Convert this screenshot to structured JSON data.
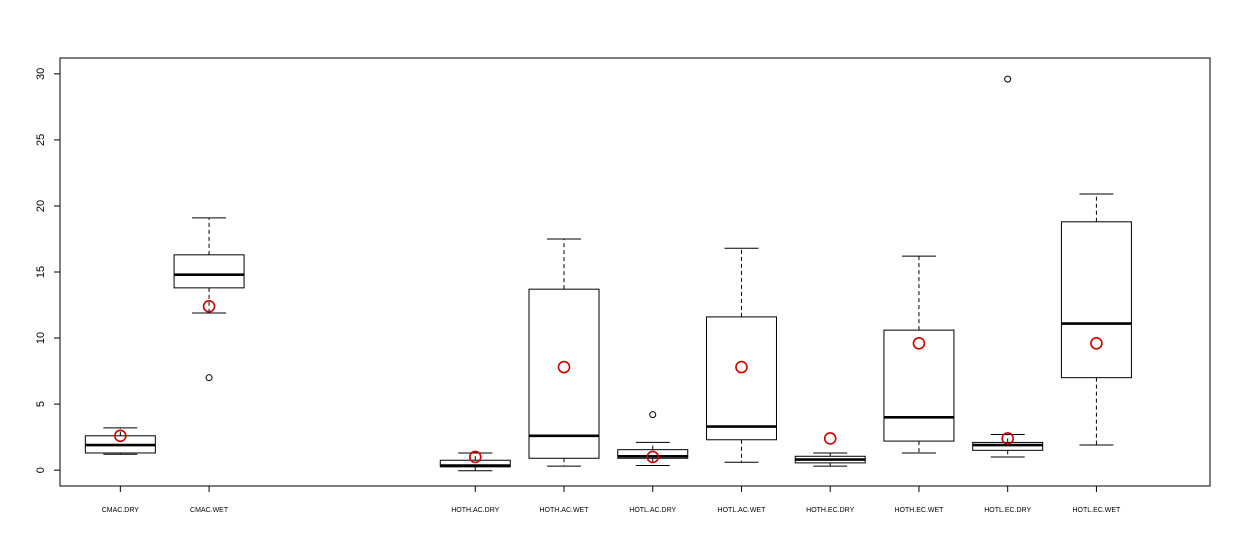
{
  "chart_data": {
    "type": "boxplot",
    "title": "",
    "xlabel": "",
    "ylabel": "",
    "ylim": [
      -1.2,
      31.2
    ],
    "yticks": [
      0,
      5,
      10,
      15,
      20,
      25,
      30
    ],
    "grid": false,
    "legend": "none",
    "colors": {
      "box": "#000000",
      "mean_marker": "#cc0000"
    },
    "categories": [
      {
        "label": "CMAC.DRY",
        "pos": 1,
        "whisker_low": 1.2,
        "q1": 1.3,
        "median": 1.9,
        "q3": 2.6,
        "whisker_high": 3.2,
        "outliers": [],
        "mean": 2.6
      },
      {
        "label": "CMAC.WET",
        "pos": 2,
        "whisker_low": 11.9,
        "q1": 13.8,
        "median": 14.8,
        "q3": 16.3,
        "whisker_high": 19.1,
        "outliers": [
          7.0
        ],
        "mean": 12.4
      },
      {
        "label": "HOTH.AC.DRY",
        "pos": 5,
        "whisker_low": -0.05,
        "q1": 0.25,
        "median": 0.35,
        "q3": 0.75,
        "whisker_high": 1.3,
        "outliers": [],
        "mean": 1.0
      },
      {
        "label": "HOTH.AC.WET",
        "pos": 6,
        "whisker_low": 0.3,
        "q1": 0.9,
        "median": 2.6,
        "q3": 13.7,
        "whisker_high": 17.5,
        "outliers": [],
        "mean": 7.8
      },
      {
        "label": "HOTL.AC.DRY",
        "pos": 7,
        "whisker_low": 0.35,
        "q1": 0.9,
        "median": 1.05,
        "q3": 1.55,
        "whisker_high": 2.1,
        "outliers": [
          4.2
        ],
        "mean": 1.0
      },
      {
        "label": "HOTL.AC.WET",
        "pos": 8,
        "whisker_low": 0.6,
        "q1": 2.3,
        "median": 3.3,
        "q3": 11.6,
        "whisker_high": 16.8,
        "outliers": [],
        "mean": 7.8
      },
      {
        "label": "HOTH.EC.DRY",
        "pos": 9,
        "whisker_low": 0.3,
        "q1": 0.55,
        "median": 0.8,
        "q3": 1.05,
        "whisker_high": 1.3,
        "outliers": [],
        "mean": 2.4
      },
      {
        "label": "HOTH.EC.WET",
        "pos": 10,
        "whisker_low": 1.3,
        "q1": 2.2,
        "median": 4.0,
        "q3": 10.6,
        "whisker_high": 16.2,
        "outliers": [],
        "mean": 9.6
      },
      {
        "label": "HOTL.EC.DRY",
        "pos": 11,
        "whisker_low": 1.0,
        "q1": 1.5,
        "median": 1.9,
        "q3": 2.1,
        "whisker_high": 2.7,
        "outliers": [
          29.6
        ],
        "mean": 2.4
      },
      {
        "label": "HOTL.EC.WET",
        "pos": 12,
        "whisker_low": 1.9,
        "q1": 7.0,
        "median": 11.1,
        "q3": 18.8,
        "whisker_high": 20.9,
        "outliers": [],
        "mean": 9.6
      }
    ],
    "xlim": [
      0.32,
      13.28
    ]
  }
}
